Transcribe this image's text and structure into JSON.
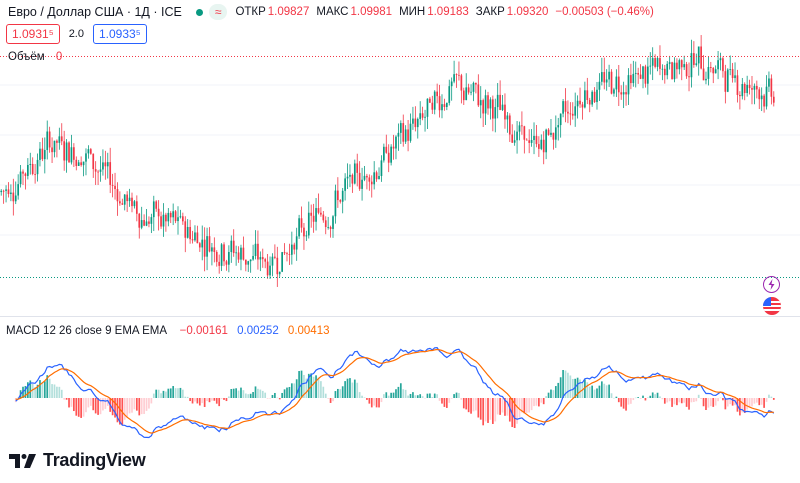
{
  "header": {
    "title": "Евро / Доллар США · 1Д · ICE",
    "pill_icon": "≈",
    "ohlc": [
      {
        "label": "ОТКР",
        "value": "1.09827"
      },
      {
        "label": "МАКС",
        "value": "1.09981"
      },
      {
        "label": "МИН",
        "value": "1.09183"
      },
      {
        "label": "ЗАКР",
        "value": "1.09320"
      },
      {
        "label": "",
        "value": "−0.00503 (−0.46%)"
      }
    ]
  },
  "prices": {
    "sell": "1.0931⁵",
    "spread": "2.0",
    "buy": "1.0933⁵"
  },
  "volume": {
    "label": "Объём",
    "value": "0"
  },
  "macd": {
    "label": "MACD 12 26 close 9 EMA EMA",
    "histogram": "−0.00161",
    "macd": "0.00252",
    "signal": "0.00413"
  },
  "brand": {
    "name": "TradingView"
  },
  "icons": [
    "live-dot-icon",
    "wave-icon",
    "lightning-icon",
    "us-flag-icon"
  ],
  "colors": {
    "up": "#089981",
    "down": "#f23645",
    "macd": "#2962ff",
    "signal": "#ff6d00"
  },
  "chart_data": {
    "type": "candlestick",
    "symbol": "EUR/USD",
    "timeframe": "1D",
    "price_anchors": [
      [
        0,
        1.09
      ],
      [
        20,
        1.0975
      ],
      [
        35,
        1.0955
      ],
      [
        55,
        1.087
      ],
      [
        70,
        1.085
      ],
      [
        90,
        1.082
      ],
      [
        110,
        1.079
      ],
      [
        135,
        1.088
      ],
      [
        160,
        1.096
      ],
      [
        185,
        1.106
      ],
      [
        205,
        1.102
      ],
      [
        220,
        1.096
      ],
      [
        240,
        1.1055
      ],
      [
        265,
        1.1075
      ],
      [
        285,
        1.11
      ],
      [
        300,
        1.1075
      ],
      [
        320,
        1.1045
      ]
    ],
    "candle_count": 320,
    "macd_indicator": {
      "fast": 12,
      "slow": 26,
      "source": "close",
      "signal": 9
    }
  }
}
